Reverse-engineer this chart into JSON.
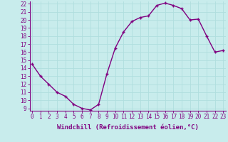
{
  "x": [
    0,
    1,
    2,
    3,
    4,
    5,
    6,
    7,
    8,
    9,
    10,
    11,
    12,
    13,
    14,
    15,
    16,
    17,
    18,
    19,
    20,
    21,
    22,
    23
  ],
  "y": [
    14.5,
    13.0,
    12.0,
    11.0,
    10.5,
    9.5,
    9.0,
    8.8,
    9.5,
    13.3,
    16.5,
    18.5,
    19.8,
    20.3,
    20.5,
    21.8,
    22.1,
    21.8,
    21.4,
    20.0,
    20.1,
    18.0,
    16.0,
    16.2
  ],
  "line_color": "#800080",
  "marker": "+",
  "background_color": "#c8ecec",
  "grid_color": "#b0dede",
  "xlabel": "Windchill (Refroidissement éolien,°C)",
  "ylim": [
    9,
    22
  ],
  "xlim": [
    0,
    23
  ],
  "yticks": [
    9,
    10,
    11,
    12,
    13,
    14,
    15,
    16,
    17,
    18,
    19,
    20,
    21,
    22
  ],
  "xticks": [
    0,
    1,
    2,
    3,
    4,
    5,
    6,
    7,
    8,
    9,
    10,
    11,
    12,
    13,
    14,
    15,
    16,
    17,
    18,
    19,
    20,
    21,
    22,
    23
  ],
  "tick_label_fontsize": 5.5,
  "xlabel_fontsize": 6.5,
  "line_width": 1.0,
  "marker_size": 3.5
}
